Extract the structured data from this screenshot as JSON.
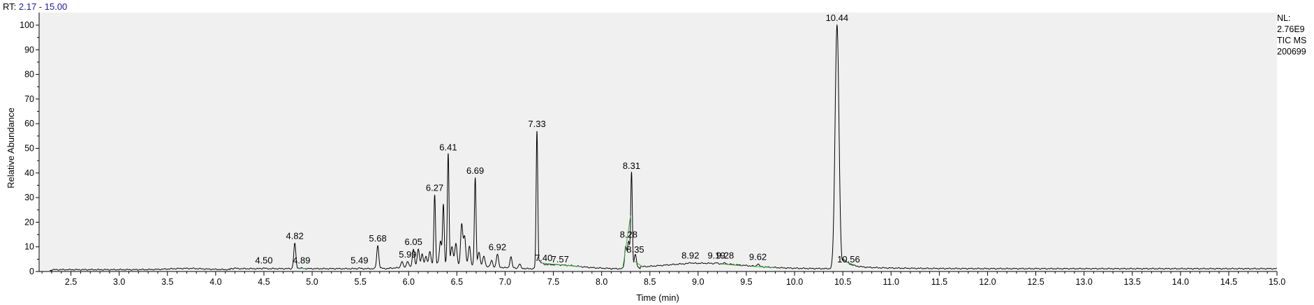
{
  "header": {
    "rt_prefix": "RT:",
    "rt_range": "2.17 - 15.00"
  },
  "info": {
    "nl_label": "NL:",
    "nl_value": "2.76E9",
    "scan_type": "TIC  MS",
    "sample": "200699"
  },
  "chart_data": {
    "type": "line",
    "xlabel": "Time (min)",
    "ylabel": "Relative Abundance",
    "xlim": [
      2.17,
      15.0
    ],
    "ylim": [
      0,
      100
    ],
    "x_ticks": [
      "2.5",
      "3.0",
      "3.5",
      "4.0",
      "4.5",
      "5.0",
      "5.5",
      "6.0",
      "6.5",
      "7.0",
      "7.5",
      "8.0",
      "8.5",
      "9.0",
      "9.5",
      "10.0",
      "10.5",
      "11.0",
      "11.5",
      "12.0",
      "12.5",
      "13.0",
      "13.5",
      "14.0",
      "14.5",
      "15.0"
    ],
    "y_ticks": [
      "0",
      "10",
      "20",
      "30",
      "40",
      "50",
      "60",
      "70",
      "80",
      "90",
      "100"
    ],
    "grid": false,
    "colors": {
      "trace": "#000000",
      "baseline_marks": "#3cb043",
      "background": "#f0f0f0",
      "rt_range": "#1a1aa6"
    },
    "peaks": [
      {
        "rt": 4.5,
        "label": "4.50",
        "height": 1.5
      },
      {
        "rt": 4.82,
        "label": "4.82",
        "height": 11.5
      },
      {
        "rt": 4.89,
        "label": "4.89",
        "height": 1.5
      },
      {
        "rt": 5.49,
        "label": "5.49",
        "height": 1.5
      },
      {
        "rt": 5.68,
        "label": "5.68",
        "height": 10.5
      },
      {
        "rt": 5.99,
        "label": "5.99",
        "height": 4
      },
      {
        "rt": 6.05,
        "label": "6.05",
        "height": 9
      },
      {
        "rt": 6.27,
        "label": "6.27",
        "height": 31
      },
      {
        "rt": 6.41,
        "label": "6.41",
        "height": 47.5
      },
      {
        "rt": 6.69,
        "label": "6.69",
        "height": 38
      },
      {
        "rt": 6.92,
        "label": "6.92",
        "height": 7
      },
      {
        "rt": 7.33,
        "label": "7.33",
        "height": 57
      },
      {
        "rt": 7.4,
        "label": "7.40",
        "height": 2.5
      },
      {
        "rt": 7.57,
        "label": "7.57",
        "height": 2
      },
      {
        "rt": 8.28,
        "label": "8.28",
        "height": 12
      },
      {
        "rt": 8.31,
        "label": "8.31",
        "height": 40
      },
      {
        "rt": 8.35,
        "label": "8.35",
        "height": 6
      },
      {
        "rt": 8.92,
        "label": "8.92",
        "height": 3.5
      },
      {
        "rt": 9.19,
        "label": "9.19",
        "height": 3.5
      },
      {
        "rt": 9.28,
        "label": "9.28",
        "height": 3.5
      },
      {
        "rt": 9.62,
        "label": "9.62",
        "height": 3
      },
      {
        "rt": 10.44,
        "label": "10.44",
        "height": 100
      },
      {
        "rt": 10.56,
        "label": "10.56",
        "height": 2
      }
    ],
    "minor_peaks": [
      {
        "rt": 4.2,
        "height": 1.5
      },
      {
        "rt": 5.93,
        "height": 4
      },
      {
        "rt": 6.1,
        "height": 9
      },
      {
        "rt": 6.14,
        "height": 7
      },
      {
        "rt": 6.18,
        "height": 6
      },
      {
        "rt": 6.22,
        "height": 8
      },
      {
        "rt": 6.33,
        "height": 12
      },
      {
        "rt": 6.36,
        "height": 27
      },
      {
        "rt": 6.45,
        "height": 9
      },
      {
        "rt": 6.49,
        "height": 11
      },
      {
        "rt": 6.55,
        "height": 19
      },
      {
        "rt": 6.58,
        "height": 14
      },
      {
        "rt": 6.63,
        "height": 10
      },
      {
        "rt": 6.73,
        "height": 7
      },
      {
        "rt": 6.78,
        "height": 6
      },
      {
        "rt": 6.86,
        "height": 4.5
      },
      {
        "rt": 7.06,
        "height": 6
      },
      {
        "rt": 7.15,
        "height": 3
      },
      {
        "rt": 8.25,
        "height": 10
      }
    ]
  }
}
